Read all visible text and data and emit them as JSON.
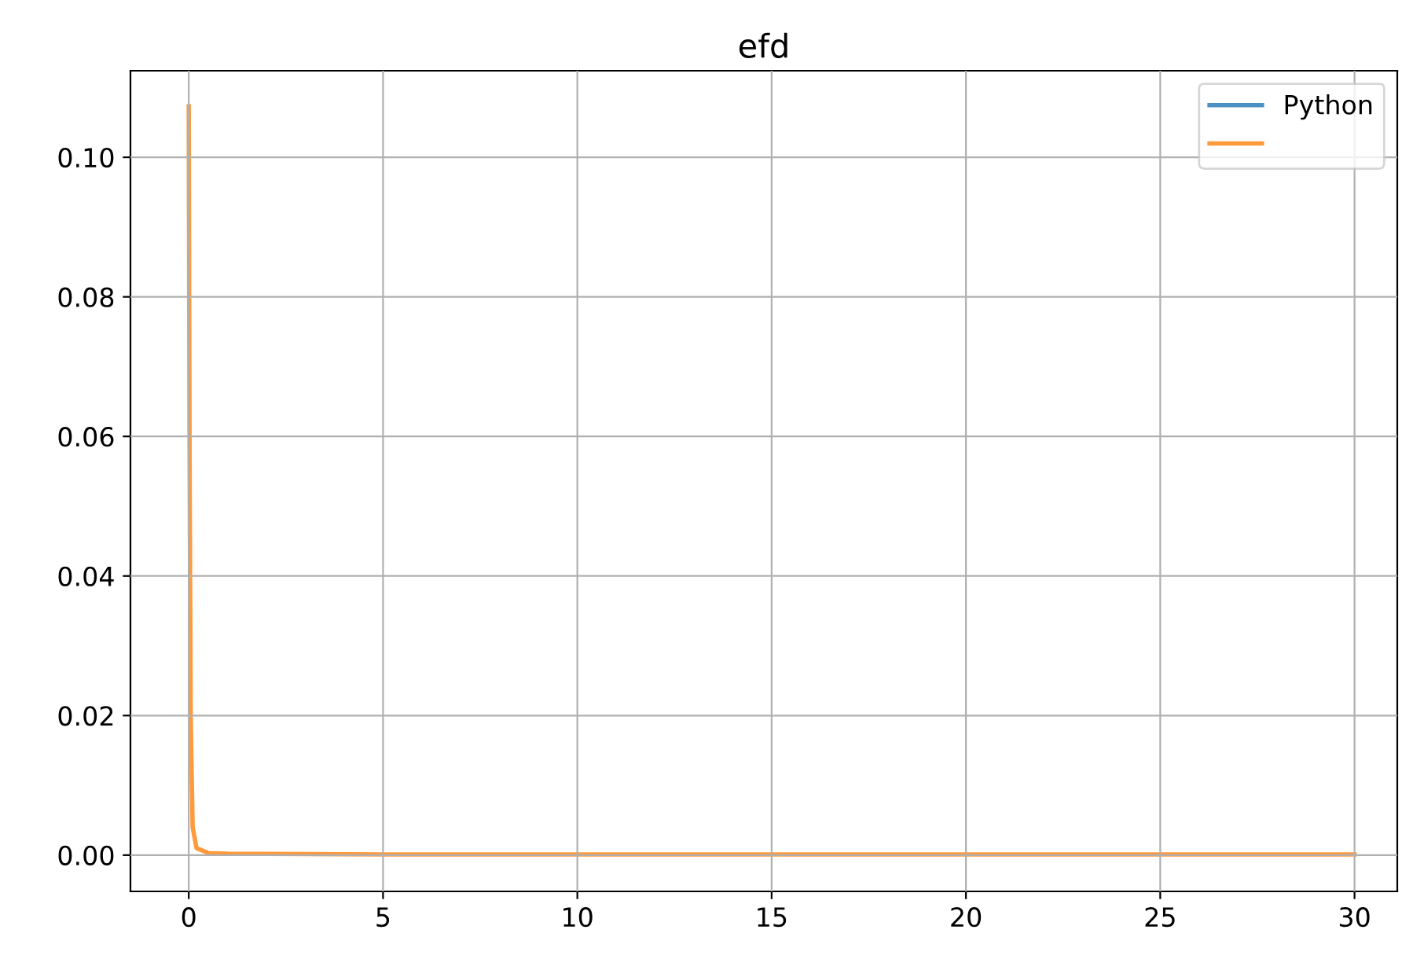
{
  "chart_data": {
    "type": "line",
    "title": "efd",
    "series": [
      {
        "name": "Python",
        "color": "#4c91c3",
        "values": [
          null,
          null,
          null,
          null,
          null,
          null,
          null,
          null,
          null,
          null,
          null
        ]
      },
      {
        "color": "#ff9a3c",
        "values": [
          0.1073,
          0.06,
          0.02,
          0.004,
          0.001,
          0.0003,
          0.0002,
          0.0001,
          0.0001,
          0.0001,
          0.0001
        ]
      }
    ],
    "x": [
      0,
      0.02,
      0.05,
      0.1,
      0.2,
      0.5,
      1,
      5,
      10,
      20,
      30
    ],
    "xlim": [
      -1.5,
      31.1
    ],
    "xticks": [
      0,
      5,
      10,
      15,
      20,
      25,
      30
    ],
    "ylim": [
      -0.0052,
      0.1124
    ],
    "yticks": [
      {
        "value": 0,
        "label": "0.00"
      },
      {
        "value": 0.02,
        "label": "0.02"
      },
      {
        "value": 0.04,
        "label": "0.04"
      },
      {
        "value": 0.06,
        "label": "0.06"
      },
      {
        "value": 0.08,
        "label": "0.08"
      },
      {
        "value": 0.1,
        "label": "0.10"
      }
    ],
    "grid": true,
    "legend": "top right"
  }
}
